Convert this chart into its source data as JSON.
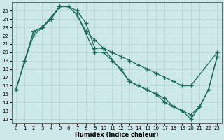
{
  "xlabel": "Humidex (Indice chaleur)",
  "bg_color": "#cce8e8",
  "line_color": "#1a6b5a",
  "grid_color": "#b8d8d8",
  "xlim": [
    -0.5,
    23.5
  ],
  "ylim": [
    11.5,
    26
  ],
  "line1_x": [
    0,
    2,
    3,
    5,
    6,
    7,
    8,
    9,
    10,
    13,
    14,
    15,
    16,
    17,
    18,
    19,
    20,
    21,
    22,
    23
  ],
  "line1_y": [
    15.5,
    22.5,
    23.0,
    25.5,
    25.5,
    25.0,
    23.5,
    20.5,
    20.5,
    16.5,
    16.0,
    15.5,
    15.0,
    14.0,
    13.5,
    13.0,
    12.0,
    13.5,
    15.5,
    19.5
  ],
  "line2_x": [
    0,
    1,
    2,
    3,
    4,
    5,
    6,
    7,
    8,
    9,
    10,
    11,
    12,
    13,
    14,
    15,
    16,
    17,
    18,
    19,
    20,
    23
  ],
  "line2_y": [
    15.5,
    19.0,
    22.5,
    23.0,
    24.0,
    25.5,
    25.5,
    24.5,
    22.5,
    21.5,
    20.5,
    20.0,
    19.5,
    19.0,
    18.5,
    18.0,
    17.5,
    17.0,
    16.5,
    16.0,
    16.0,
    20.0
  ],
  "line3_x": [
    0,
    1,
    2,
    3,
    4,
    5,
    6,
    7,
    9,
    10,
    11,
    12,
    13,
    14,
    15,
    16,
    17,
    18,
    19,
    20,
    21,
    22,
    23
  ],
  "line3_y": [
    15.5,
    19.0,
    22.0,
    23.0,
    24.0,
    25.5,
    25.5,
    24.5,
    20.0,
    20.0,
    19.0,
    18.0,
    16.5,
    16.0,
    15.5,
    15.0,
    14.5,
    13.5,
    13.0,
    12.5,
    13.5,
    15.5,
    19.5
  ],
  "xticks": [
    0,
    1,
    2,
    3,
    4,
    5,
    6,
    7,
    8,
    9,
    10,
    11,
    12,
    13,
    14,
    15,
    16,
    17,
    18,
    19,
    20,
    21,
    22,
    23
  ],
  "xtick_labels": [
    "0",
    "1",
    "2",
    "3",
    "4",
    "5",
    "6",
    "7",
    "8",
    "9",
    "10",
    "11",
    "12",
    "13",
    "14",
    "15",
    "16",
    "17",
    "18",
    "19",
    "20",
    "21",
    "22",
    "23"
  ],
  "yticks": [
    12,
    13,
    14,
    15,
    16,
    17,
    18,
    19,
    20,
    21,
    22,
    23,
    24,
    25
  ]
}
